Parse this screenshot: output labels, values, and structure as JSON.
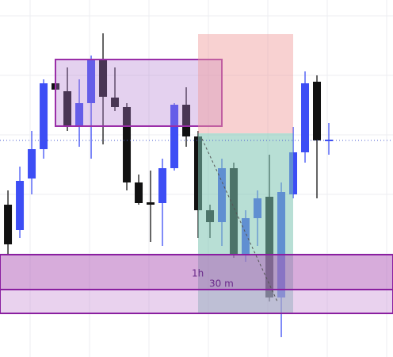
{
  "chart_data": {
    "type": "candlestick",
    "x": [
      0,
      1,
      2,
      3,
      4,
      5,
      6,
      7,
      8,
      9,
      10,
      11,
      12,
      13,
      14,
      15,
      16,
      17,
      18,
      19,
      20,
      21,
      22,
      23,
      24,
      25,
      26,
      27
    ],
    "open": [
      192,
      160,
      225,
      262,
      345,
      335,
      290,
      320,
      375,
      327,
      315,
      220,
      195,
      194,
      238,
      318,
      278,
      185,
      170,
      238,
      128,
      175,
      202,
      75,
      205,
      258,
      347,
      272
    ],
    "high": [
      210,
      240,
      285,
      350,
      370,
      365,
      350,
      380,
      408,
      365,
      320,
      230,
      235,
      250,
      320,
      340,
      285,
      192,
      250,
      245,
      185,
      210,
      255,
      220,
      290,
      360,
      355,
      295
    ],
    "low": [
      130,
      150,
      205,
      250,
      330,
      285,
      265,
      250,
      268,
      310,
      210,
      192,
      145,
      140,
      235,
      265,
      150,
      150,
      140,
      125,
      120,
      140,
      70,
      25,
      200,
      245,
      200,
      255
    ],
    "close": [
      142,
      222,
      262,
      345,
      337,
      290,
      320,
      375,
      328,
      315,
      220,
      194,
      192,
      238,
      318,
      278,
      185,
      170,
      238,
      128,
      175,
      200,
      75,
      208,
      258,
      345,
      273,
      274
    ],
    "up_color": "#3d4ef5",
    "down_color": "#111111",
    "xlim": [
      -0.67,
      32.4
    ],
    "ylim": [
      0,
      450
    ],
    "grid": true,
    "annotations": [
      "1h",
      "30 m"
    ]
  }
}
